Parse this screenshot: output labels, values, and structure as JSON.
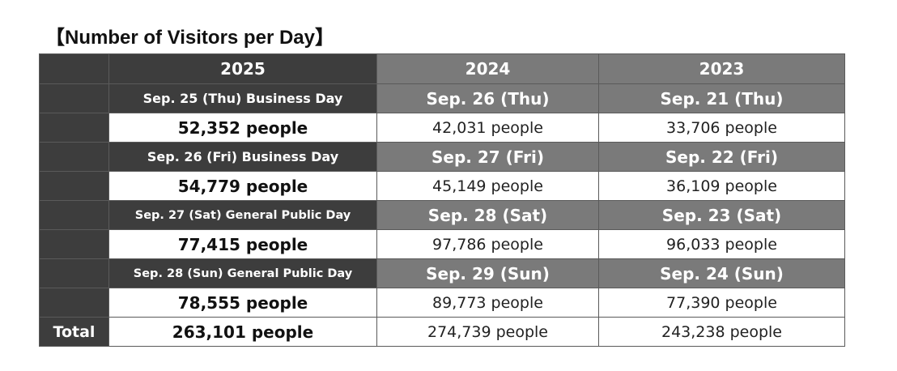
{
  "title": "【Number of Visitors per Day】",
  "years": [
    "2025",
    "2024",
    "2023"
  ],
  "rows": [
    {
      "dates": [
        "Sep. 25 (Thu) Business Day",
        "Sep. 26 (Thu)",
        "Sep. 21 (Thu)"
      ],
      "values": [
        "52,352 people",
        "42,031 people",
        "33,706 people"
      ]
    },
    {
      "dates": [
        "Sep. 26 (Fri) Business Day",
        "Sep. 27 (Fri)",
        "Sep. 22 (Fri)"
      ],
      "values": [
        "54,779 people",
        "45,149 people",
        "36,109 people"
      ]
    },
    {
      "dates": [
        "Sep. 27 (Sat) General Public Day",
        "Sep. 28 (Sat)",
        "Sep. 23 (Sat)"
      ],
      "values": [
        "77,415 people",
        "97,786 people",
        "96,033 people"
      ]
    },
    {
      "dates": [
        "Sep. 28 (Sun) General Public Day",
        "Sep. 29 (Sun)",
        "Sep. 24 (Sun)"
      ],
      "values": [
        "78,555 people",
        "89,773 people",
        "77,390 people"
      ]
    }
  ],
  "total": {
    "label": "Total",
    "values": [
      "263,101 people",
      "274,739 people",
      "243,238 people"
    ]
  }
}
